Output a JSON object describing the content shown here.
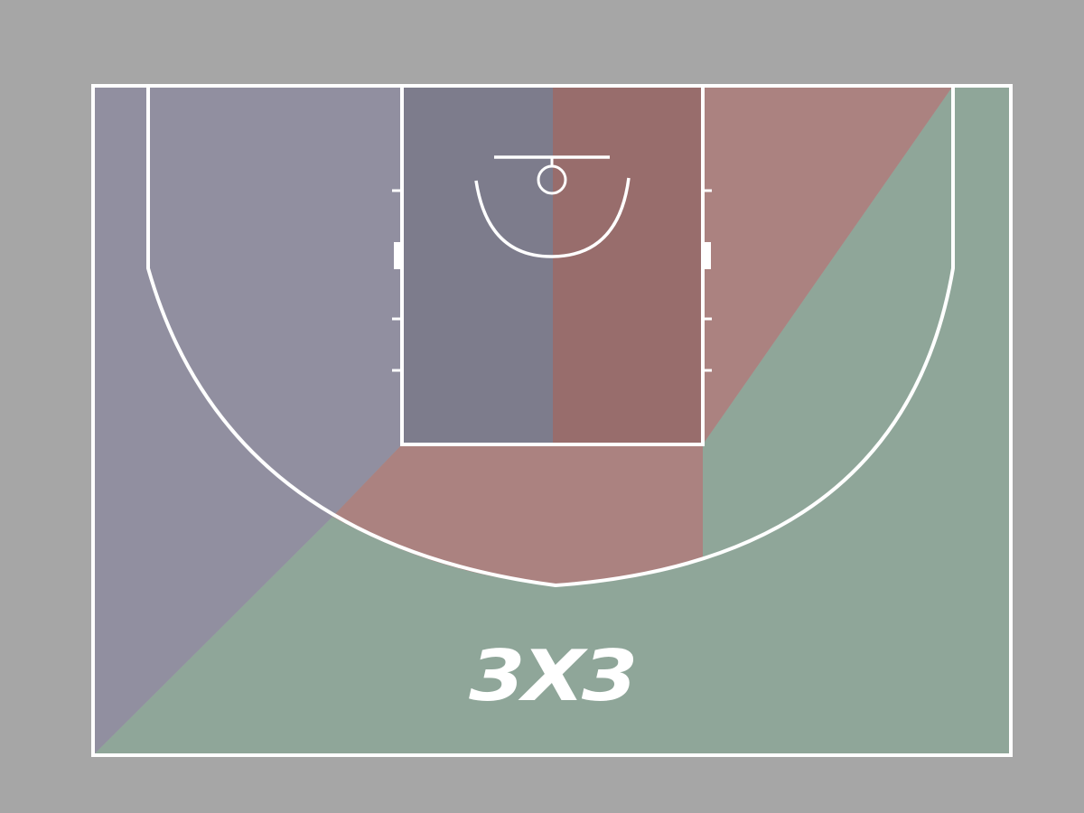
{
  "logo": {
    "text": "3X3"
  },
  "colors": {
    "background": "#a6a6a6",
    "zone_left": "#918fa0",
    "zone_paint_left": "#7d7c8c",
    "zone_paint_right": "#986d6c",
    "zone_rose": "#ab8280",
    "zone_green": "#8fa699",
    "lines": "#ffffff",
    "logo": "#ffffff"
  }
}
